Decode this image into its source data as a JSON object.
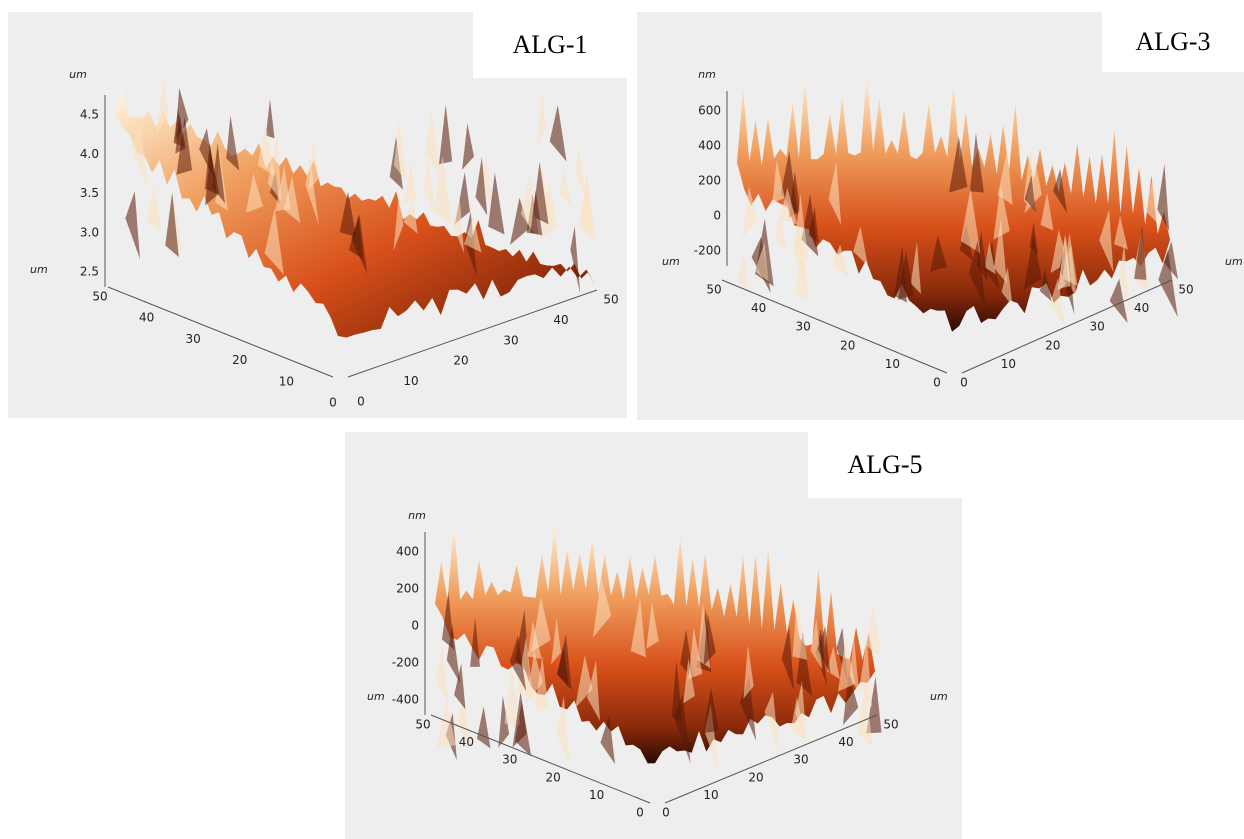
{
  "panels": [
    {
      "label": "ALG-1",
      "z_unit": "um",
      "z_ticks": [
        "4.5",
        "4.0",
        "3.5",
        "3.0",
        "2.5"
      ],
      "left_unit": "um",
      "left_ticks": [
        "50",
        "40",
        "30",
        "20",
        "10",
        "0"
      ],
      "right_ticks": [
        "0",
        "10",
        "20",
        "30",
        "40",
        "50"
      ]
    },
    {
      "label": "ALG-3",
      "z_unit": "nm",
      "z_ticks": [
        "600",
        "400",
        "200",
        "0",
        "-200"
      ],
      "left_unit": "um",
      "right_unit": "um",
      "left_ticks": [
        "50",
        "40",
        "30",
        "20",
        "10",
        "0"
      ],
      "right_ticks": [
        "0",
        "10",
        "20",
        "30",
        "40",
        "50"
      ]
    },
    {
      "label": "ALG-5",
      "z_unit": "nm",
      "z_ticks": [
        "400",
        "200",
        "0",
        "-200",
        "-400"
      ],
      "left_unit": "um",
      "right_unit": "um",
      "left_ticks": [
        "50",
        "40",
        "30",
        "20",
        "10",
        "0"
      ],
      "right_ticks": [
        "0",
        "10",
        "20",
        "30",
        "40",
        "50"
      ]
    }
  ]
}
